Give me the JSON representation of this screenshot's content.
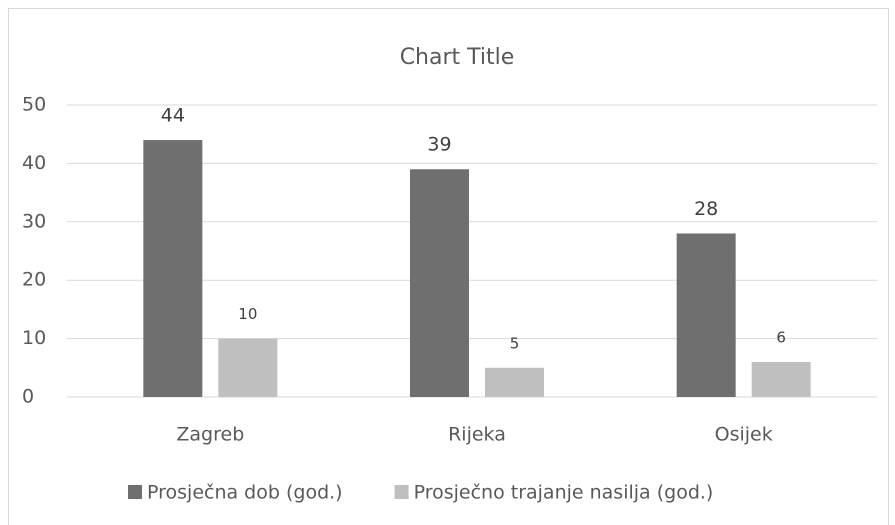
{
  "chart_data": {
    "type": "bar",
    "title": "Chart Title",
    "categories": [
      "Zagreb",
      "Rijeka",
      "Osijek"
    ],
    "series": [
      {
        "name": "Prosječna dob (god.)",
        "color": "#6f6f6f",
        "values": [
          44,
          39,
          28
        ]
      },
      {
        "name": "Prosječno trajanje nasilja (god.)",
        "color": "#bfbfbf",
        "values": [
          10,
          5,
          6
        ]
      }
    ],
    "ylim": [
      0,
      50
    ],
    "yticks": [
      0,
      10,
      20,
      30,
      40,
      50
    ],
    "grid": true,
    "legend": "bottom"
  }
}
